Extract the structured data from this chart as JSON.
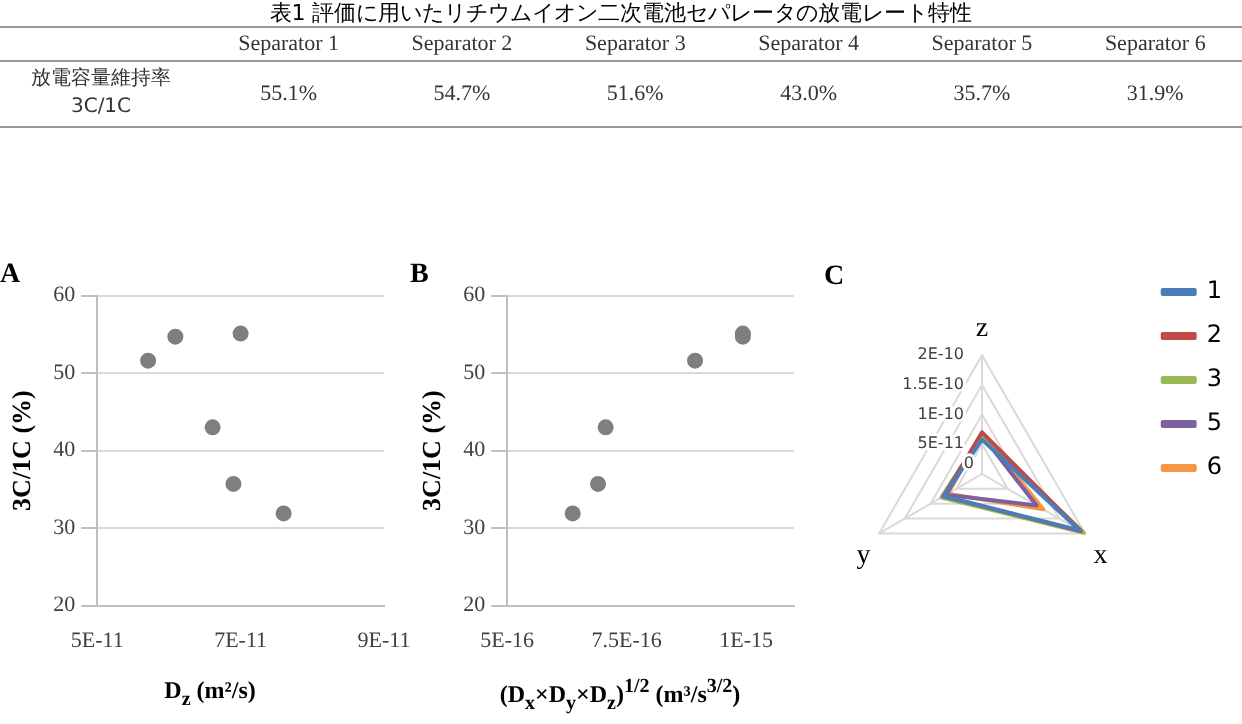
{
  "chart_data": [
    {
      "type": "other",
      "title": "表1 評価に用いたリチウムイオン二次電池セパレータの放電レート特性",
      "ylabel": "放電容量維持率 3C/1C",
      "categories": [
        "Separator 1",
        "Separator 2",
        "Separator 3",
        "Separator 4",
        "Separator 5",
        "Separator 6"
      ],
      "value_labels": [
        "55.1%",
        "54.7%",
        "51.6%",
        "43.0%",
        "35.7%",
        "31.9%"
      ]
    },
    {
      "type": "scatter",
      "title": "A",
      "xlabel": "D$_{z}$ (m²/s)",
      "ylabel": "3C/1C (%)",
      "series": [
        {
          "color": "#7f7f7f",
          "x": [
            7e-11,
            6.09e-11,
            5.71e-11,
            6.61e-11,
            6.9e-11,
            7.6e-11
          ],
          "values": [
            55.1,
            54.7,
            51.6,
            43.0,
            35.7,
            31.9
          ]
        }
      ],
      "xlim": [
        5e-11,
        9e-11
      ],
      "xticks": [
        {
          "value": 5e-11,
          "label": "5E-11"
        },
        {
          "value": 7e-11,
          "label": "7E-11"
        },
        {
          "value": 9e-11,
          "label": "9E-11"
        }
      ],
      "ylim": [
        20,
        60
      ],
      "yticks": [
        20,
        30,
        40,
        50,
        60
      ],
      "grid": "y",
      "marker": "circle",
      "legend": false
    },
    {
      "type": "scatter",
      "title": "B",
      "xlabel": "(D$_{x}$×D$_{y}$×D$_{z}$)$^{1/2}$ (m³/s$^{3/2}$)",
      "ylabel": "3C/1C (%)",
      "series": [
        {
          "color": "#7f7f7f",
          "x": [
            9.93e-16,
            9.93e-16,
            8.93e-16,
            7.06e-16,
            6.9e-16,
            6.37e-16
          ],
          "values": [
            55.1,
            54.7,
            51.6,
            43.0,
            35.7,
            31.9
          ]
        }
      ],
      "xlim": [
        5e-16,
        1.1e-15
      ],
      "xticks": [
        {
          "value": 5e-16,
          "label": "5E-16"
        },
        {
          "value": 7.5e-16,
          "label": "7.5E-16"
        },
        {
          "value": 1e-15,
          "label": "1E-15"
        }
      ],
      "ylim": [
        20,
        60
      ],
      "yticks": [
        20,
        30,
        40,
        50,
        60
      ],
      "grid": "y",
      "marker": "circle",
      "legend": false
    },
    {
      "type": "radar",
      "title": "C",
      "categories": [
        "z",
        "x",
        "y"
      ],
      "series": [
        {
          "name": "1",
          "color": "#4a7ebb",
          "values": [
            5.8e-11,
            1.9e-10,
            7.5e-11
          ]
        },
        {
          "name": "2",
          "color": "#be4b48",
          "values": [
            7e-11,
            1.92e-10,
            7.5e-11
          ]
        },
        {
          "name": "3",
          "color": "#98b954",
          "values": [
            6.5e-11,
            1.98e-10,
            7.9e-11
          ]
        },
        {
          "name": "5",
          "color": "#7d60a0",
          "values": [
            6.5e-11,
            1.06e-10,
            7e-11
          ]
        },
        {
          "name": "6",
          "color": "#f79646",
          "values": [
            7e-11,
            1.19e-10,
            6.6e-11
          ]
        }
      ],
      "ylim": [
        0,
        2e-10
      ],
      "yticks": [
        {
          "value": 0,
          "label": "0"
        },
        {
          "value": 5e-11,
          "label": "5E-11"
        },
        {
          "value": 1e-10,
          "label": "1E-10"
        },
        {
          "value": 1.5e-10,
          "label": "1.5E-10"
        },
        {
          "value": 2e-10,
          "label": "2E-10"
        }
      ],
      "grid": true,
      "legend": "right"
    }
  ]
}
